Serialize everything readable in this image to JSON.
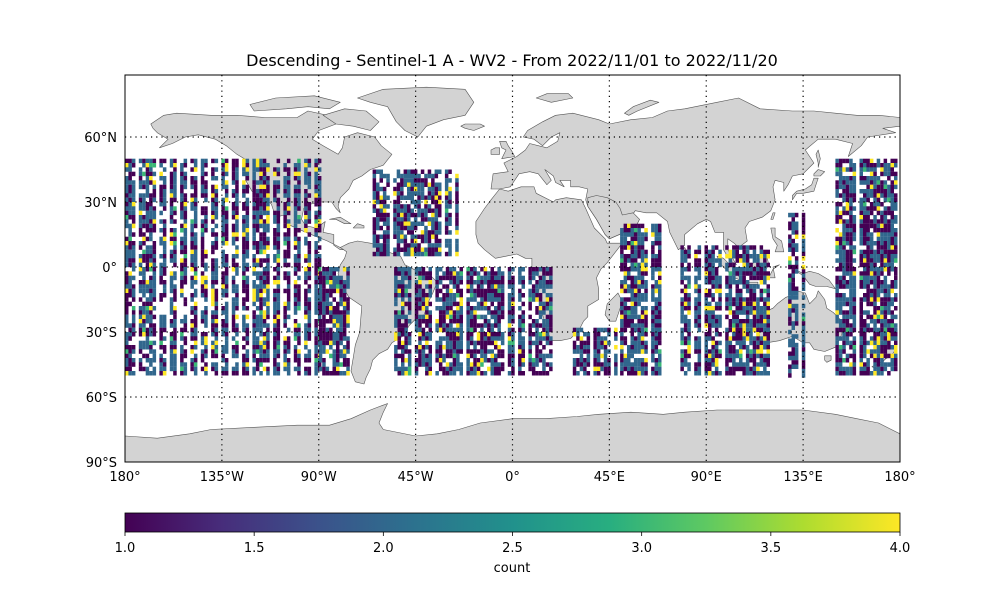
{
  "title": "Descending - Sentinel-1 A - WV2 - From 2022/11/01 to 2022/11/20",
  "map": {
    "lon_range": [
      -180,
      180
    ],
    "lat_range": [
      -90,
      90
    ],
    "lon_ticks": [
      {
        "value": -180,
        "label": "180°"
      },
      {
        "value": -135,
        "label": "135°W"
      },
      {
        "value": -90,
        "label": "90°W"
      },
      {
        "value": -45,
        "label": "45°W"
      },
      {
        "value": 0,
        "label": "0°"
      },
      {
        "value": 45,
        "label": "45°E"
      },
      {
        "value": 90,
        "label": "90°E"
      },
      {
        "value": 135,
        "label": "135°E"
      },
      {
        "value": 180,
        "label": "180°"
      }
    ],
    "lat_ticks": [
      {
        "value": 60,
        "label": "60°N"
      },
      {
        "value": 30,
        "label": "30°N"
      },
      {
        "value": 0,
        "label": "0°"
      },
      {
        "value": -30,
        "label": "30°S"
      },
      {
        "value": -60,
        "label": "60°S"
      },
      {
        "value": -90,
        "label": "90°S"
      }
    ],
    "land_color": "#d3d3d3",
    "coast_color": "#555555",
    "grid_style": "dotted",
    "data_lat_extent": [
      -50,
      50
    ],
    "data_regions": [
      {
        "lon": [
          -180,
          -90
        ],
        "lat": [
          -50,
          50
        ]
      },
      {
        "lon": [
          -90,
          -75
        ],
        "lat": [
          -50,
          0
        ]
      },
      {
        "lon": [
          -65,
          -25
        ],
        "lat": [
          5,
          45
        ]
      },
      {
        "lon": [
          -55,
          18
        ],
        "lat": [
          -50,
          0
        ]
      },
      {
        "lon": [
          28,
          48
        ],
        "lat": [
          -50,
          -28
        ]
      },
      {
        "lon": [
          50,
          70
        ],
        "lat": [
          -50,
          20
        ]
      },
      {
        "lon": [
          78,
          118
        ],
        "lat": [
          -50,
          10
        ]
      },
      {
        "lon": [
          128,
          135
        ],
        "lat": [
          -50,
          25
        ]
      },
      {
        "lon": [
          150,
          180
        ],
        "lat": [
          -50,
          50
        ]
      }
    ]
  },
  "colorbar": {
    "label": "count",
    "min": 1.0,
    "max": 4.0,
    "colormap": "viridis",
    "ticks": [
      {
        "value": 1.0,
        "label": "1.0"
      },
      {
        "value": 1.5,
        "label": "1.5"
      },
      {
        "value": 2.0,
        "label": "2.0"
      },
      {
        "value": 2.5,
        "label": "2.5"
      },
      {
        "value": 3.0,
        "label": "3.0"
      },
      {
        "value": 3.5,
        "label": "3.5"
      },
      {
        "value": 4.0,
        "label": "4.0"
      }
    ]
  }
}
